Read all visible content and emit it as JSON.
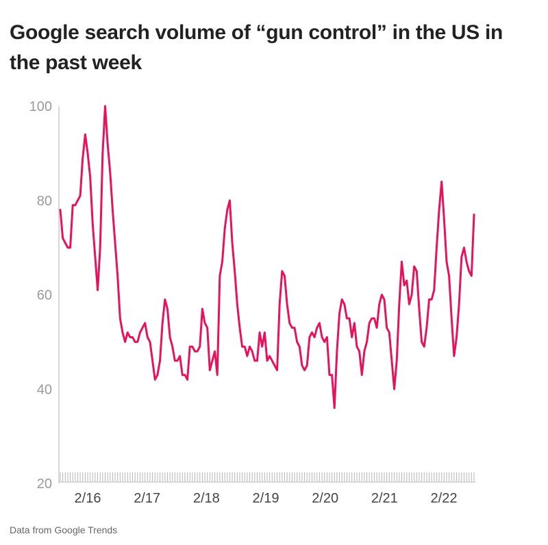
{
  "title": "Google search volume of “gun control” in the US in the past week",
  "source": "Data from Google Trends",
  "colors": {
    "line": "#e8115b",
    "axis": "#cccccc",
    "ytick": "#9a9a9a",
    "xtick": "#444444"
  },
  "chart_data": {
    "type": "line",
    "title": "Google search volume of “gun control” in the US in the past week",
    "xlabel": "",
    "ylabel": "",
    "ylim": [
      20,
      100
    ],
    "yticks": [
      "100",
      "80",
      "60",
      "40",
      "20"
    ],
    "xticks": [
      "2/16",
      "2/17",
      "2/18",
      "2/19",
      "2/20",
      "2/21",
      "2/22"
    ],
    "grid": false,
    "series": [
      {
        "values": [
          78,
          72,
          71,
          70,
          70,
          79,
          79,
          80,
          81,
          89,
          94,
          90,
          85,
          75,
          68,
          61,
          70,
          90,
          100,
          92,
          86,
          78,
          71,
          64,
          55,
          52,
          50,
          52,
          51,
          51,
          50,
          50,
          52,
          53,
          54,
          51,
          50,
          46,
          42,
          43,
          46,
          54,
          59,
          57,
          51,
          49,
          46,
          46,
          47,
          43,
          43,
          42,
          49,
          49,
          48,
          48,
          49,
          57,
          54,
          53,
          44,
          46,
          48,
          43,
          64,
          67,
          74,
          78,
          80,
          71,
          65,
          58,
          53,
          49,
          49,
          47,
          49,
          48,
          46,
          46,
          52,
          49,
          52,
          46,
          47,
          46,
          45,
          44,
          58,
          65,
          64,
          58,
          54,
          53,
          53,
          50,
          49,
          45,
          44,
          45,
          51,
          52,
          51,
          53,
          54,
          51,
          50,
          51,
          43,
          43,
          36,
          48,
          56,
          59,
          58,
          55,
          55,
          51,
          54,
          49,
          48,
          43,
          48,
          50,
          54,
          55,
          55,
          53,
          58,
          60,
          59,
          53,
          52,
          46,
          40,
          46,
          58,
          67,
          62,
          63,
          58,
          60,
          66,
          65,
          57,
          50,
          49,
          53,
          59,
          59,
          61,
          70,
          78,
          84,
          76,
          67,
          64,
          55,
          47,
          51,
          58,
          68,
          70,
          67,
          65,
          64,
          77
        ]
      }
    ]
  }
}
